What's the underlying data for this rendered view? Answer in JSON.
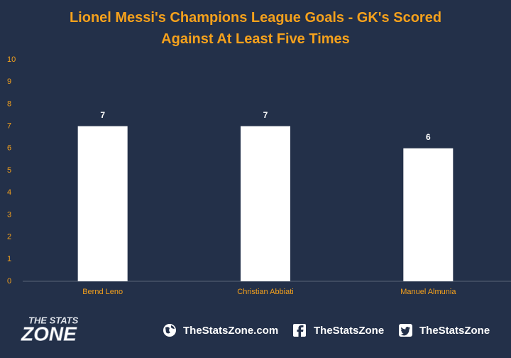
{
  "chart_data": {
    "type": "bar",
    "title": "Lionel Messi's Champions League Goals - GK's Scored Against At Least Five Times",
    "categories": [
      "Bernd Leno",
      "Christian Abbiati",
      "Manuel Almunia"
    ],
    "values": [
      7,
      7,
      6
    ],
    "color": "#ffffff",
    "ylim": [
      0,
      10
    ],
    "yticks": [
      0,
      1,
      2,
      3,
      4,
      5,
      6,
      7,
      8,
      9,
      10
    ],
    "grid": false
  },
  "footer": {
    "logo_top": "THE STATS",
    "logo_bottom": "ZONE",
    "website": "TheStatsZone.com",
    "facebook": "TheStatsZone",
    "twitter": "TheStatsZone"
  }
}
